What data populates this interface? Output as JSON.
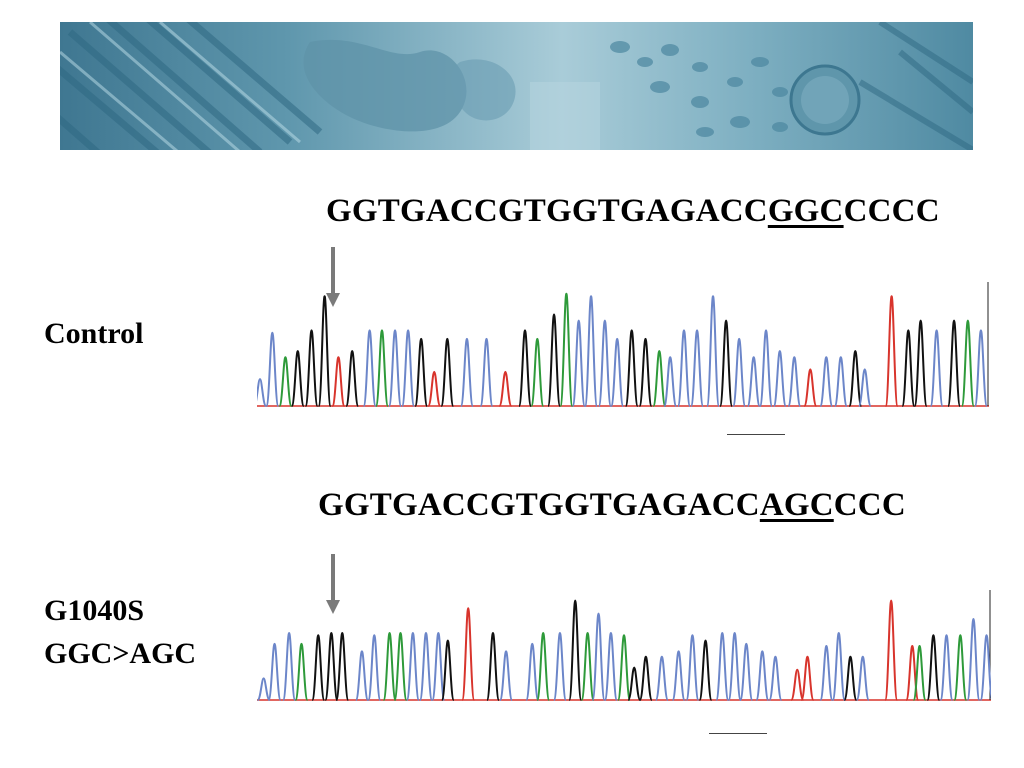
{
  "sequences": {
    "control": {
      "prefix": "GGTGACCGTGGTGAGACC",
      "codon": "GGC",
      "suffix": "CCCC"
    },
    "mutant": {
      "prefix": "GGTGACCGTGGTGAGACC",
      "codon": "AGC",
      "suffix": "CCC"
    }
  },
  "labels": {
    "control": "Control",
    "mutant_line1": "G1040S",
    "mutant_line2": "GGC>AGC"
  },
  "colors": {
    "base_A": "#2e9a3a",
    "base_C": "#6c86c9",
    "base_G": "#111111",
    "base_T": "#d8342c",
    "arrow": "#7a7a7a",
    "banner_light": "#a9ccd8",
    "banner_dark": "#3f7791"
  },
  "traces": {
    "control": {
      "peaks": [
        [
          0.0,
          "C",
          0.22
        ],
        [
          0.017,
          "C",
          0.6
        ],
        [
          0.035,
          "A",
          0.4
        ],
        [
          0.052,
          "G",
          0.45
        ],
        [
          0.071,
          "G",
          0.62
        ],
        [
          0.089,
          "G",
          0.9
        ],
        [
          0.108,
          "T",
          0.4
        ],
        [
          0.127,
          "G",
          0.45
        ],
        [
          0.151,
          "C",
          0.62
        ],
        [
          0.168,
          "A",
          0.62
        ],
        [
          0.186,
          "C",
          0.62
        ],
        [
          0.204,
          "C",
          0.62
        ],
        [
          0.222,
          "G",
          0.55
        ],
        [
          0.24,
          "T",
          0.28
        ],
        [
          0.258,
          "G",
          0.55
        ],
        [
          0.285,
          "C",
          0.55
        ],
        [
          0.312,
          "C",
          0.55
        ],
        [
          0.338,
          "T",
          0.28
        ],
        [
          0.365,
          "G",
          0.62
        ],
        [
          0.382,
          "A",
          0.55
        ],
        [
          0.405,
          "G",
          0.75
        ],
        [
          0.422,
          "A",
          0.92
        ],
        [
          0.439,
          "C",
          0.7
        ],
        [
          0.456,
          "C",
          0.9
        ],
        [
          0.475,
          "C",
          0.7
        ],
        [
          0.492,
          "C",
          0.55
        ],
        [
          0.512,
          "G",
          0.62
        ],
        [
          0.531,
          "G",
          0.55
        ],
        [
          0.55,
          "A",
          0.45
        ],
        [
          0.565,
          "C",
          0.4
        ],
        [
          0.584,
          "C",
          0.62
        ],
        [
          0.602,
          "C",
          0.62
        ],
        [
          0.624,
          "C",
          0.9
        ],
        [
          0.642,
          "G",
          0.7
        ],
        [
          0.66,
          "C",
          0.55
        ],
        [
          0.68,
          "C",
          0.4
        ],
        [
          0.697,
          "C",
          0.62
        ],
        [
          0.716,
          "C",
          0.45
        ],
        [
          0.736,
          "C",
          0.4
        ],
        [
          0.758,
          "T",
          0.3
        ],
        [
          0.78,
          "C",
          0.4
        ],
        [
          0.8,
          "C",
          0.4
        ],
        [
          0.82,
          "G",
          0.45
        ],
        [
          0.833,
          "C",
          0.3
        ],
        [
          0.87,
          "T",
          0.9
        ],
        [
          0.893,
          "G",
          0.62
        ],
        [
          0.91,
          "G",
          0.7
        ],
        [
          0.932,
          "C",
          0.62
        ],
        [
          0.956,
          "G",
          0.7
        ],
        [
          0.975,
          "A",
          0.7
        ],
        [
          0.993,
          "C",
          0.62
        ]
      ]
    },
    "mutant": {
      "peaks": [
        [
          0.005,
          "C",
          0.2
        ],
        [
          0.02,
          "C",
          0.52
        ],
        [
          0.04,
          "C",
          0.62
        ],
        [
          0.057,
          "A",
          0.52
        ],
        [
          0.08,
          "G",
          0.6
        ],
        [
          0.098,
          "G",
          0.62
        ],
        [
          0.113,
          "G",
          0.62
        ],
        [
          0.14,
          "C",
          0.45
        ],
        [
          0.157,
          "C",
          0.6
        ],
        [
          0.178,
          "A",
          0.62
        ],
        [
          0.193,
          "A",
          0.62
        ],
        [
          0.21,
          "C",
          0.62
        ],
        [
          0.228,
          "C",
          0.62
        ],
        [
          0.245,
          "C",
          0.62
        ],
        [
          0.258,
          "G",
          0.55
        ],
        [
          0.286,
          "T",
          0.85
        ],
        [
          0.32,
          "G",
          0.62
        ],
        [
          0.338,
          "C",
          0.45
        ],
        [
          0.374,
          "C",
          0.52
        ],
        [
          0.389,
          "A",
          0.62
        ],
        [
          0.412,
          "C",
          0.62
        ],
        [
          0.433,
          "G",
          0.92
        ],
        [
          0.45,
          "A",
          0.62
        ],
        [
          0.465,
          "C",
          0.8
        ],
        [
          0.482,
          "C",
          0.62
        ],
        [
          0.5,
          "A",
          0.6
        ],
        [
          0.514,
          "G",
          0.3
        ],
        [
          0.53,
          "G",
          0.4
        ],
        [
          0.552,
          "C",
          0.4
        ],
        [
          0.575,
          "C",
          0.45
        ],
        [
          0.594,
          "C",
          0.6
        ],
        [
          0.612,
          "G",
          0.55
        ],
        [
          0.635,
          "C",
          0.62
        ],
        [
          0.652,
          "C",
          0.62
        ],
        [
          0.668,
          "C",
          0.52
        ],
        [
          0.69,
          "C",
          0.45
        ],
        [
          0.708,
          "C",
          0.4
        ],
        [
          0.738,
          "T",
          0.28
        ],
        [
          0.752,
          "T",
          0.4
        ],
        [
          0.778,
          "C",
          0.5
        ],
        [
          0.795,
          "C",
          0.62
        ],
        [
          0.811,
          "G",
          0.4
        ],
        [
          0.828,
          "C",
          0.4
        ],
        [
          0.867,
          "T",
          0.92
        ],
        [
          0.896,
          "T",
          0.5
        ],
        [
          0.906,
          "A",
          0.5
        ],
        [
          0.925,
          "G",
          0.6
        ],
        [
          0.943,
          "C",
          0.6
        ],
        [
          0.962,
          "A",
          0.6
        ],
        [
          0.98,
          "C",
          0.75
        ],
        [
          0.998,
          "C",
          0.6
        ]
      ]
    }
  }
}
